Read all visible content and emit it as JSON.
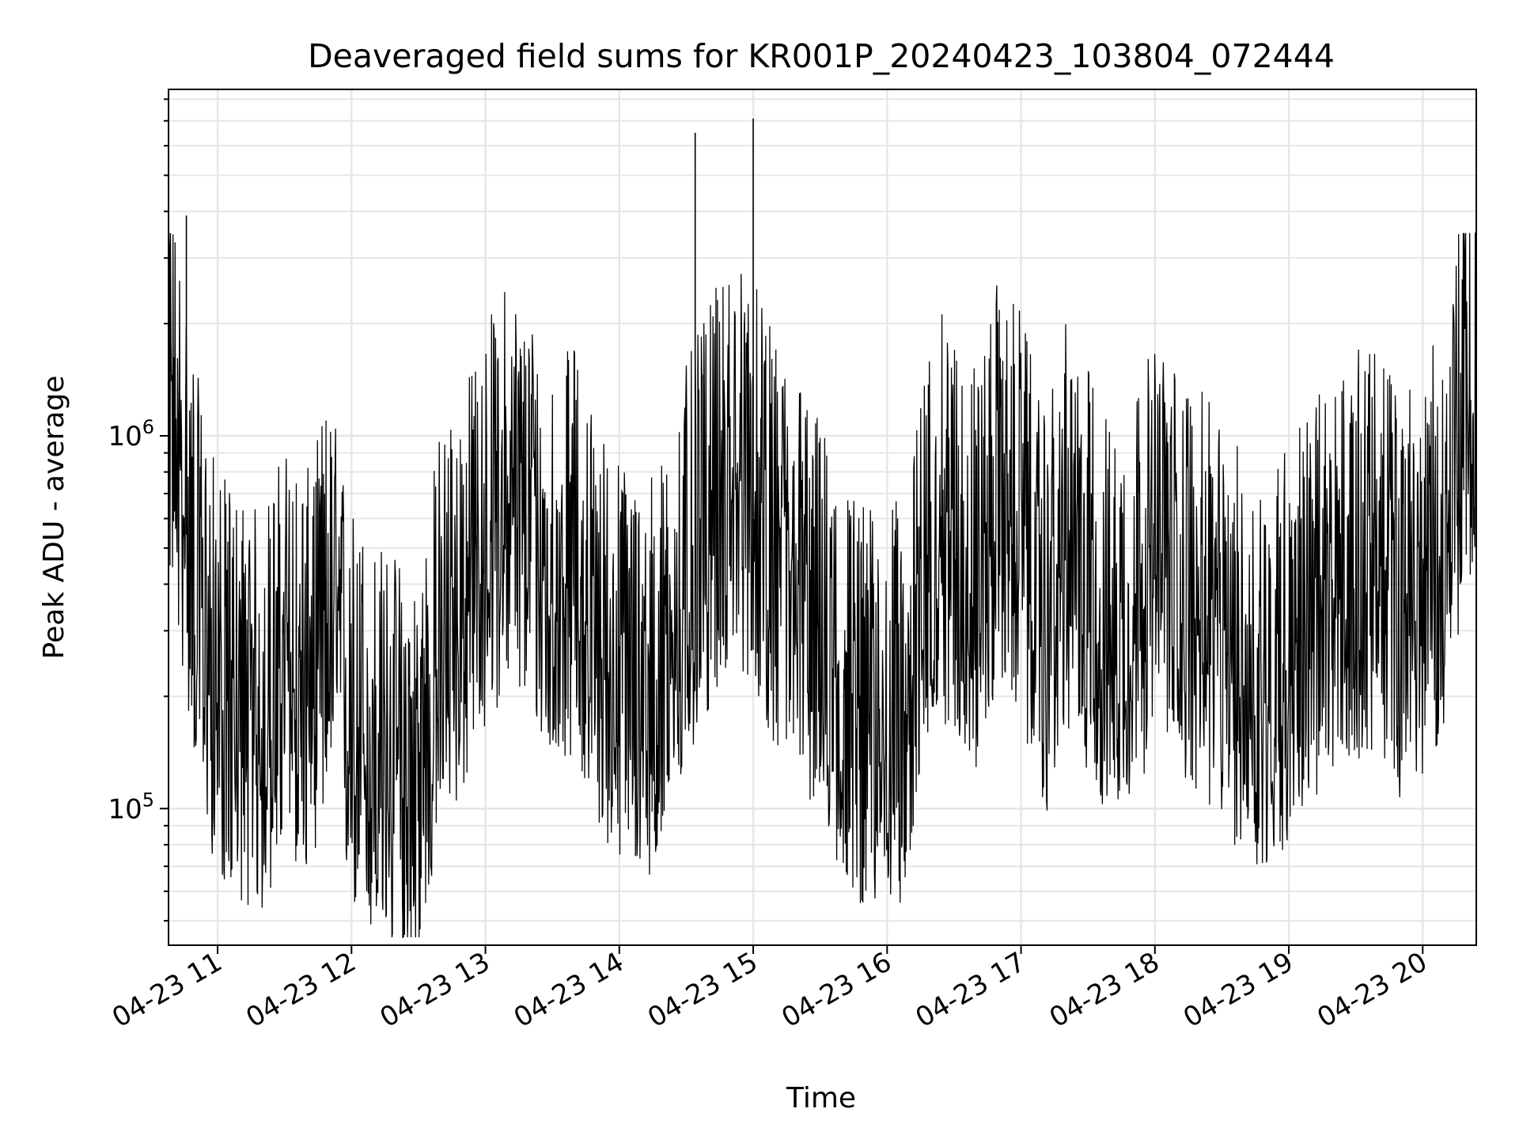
{
  "chart_data": {
    "type": "line",
    "title": "Deaveraged field sums for KR001P_20240423_103804_072444",
    "xlabel": "Time",
    "ylabel": "Peak ADU - average",
    "yscale": "log",
    "ylim": [
      43000,
      8500000
    ],
    "xlim": [
      "2024-04-23 10:38",
      "2024-04-23 20:24"
    ],
    "x_ticks": [
      "04-23 11",
      "04-23 12",
      "04-23 13",
      "04-23 14",
      "04-23 15",
      "04-23 16",
      "04-23 17",
      "04-23 18",
      "04-23 19",
      "04-23 20"
    ],
    "y_ticks": [
      {
        "base": "10",
        "exp": "5",
        "value": 100000
      },
      {
        "base": "10",
        "exp": "6",
        "value": 1000000
      }
    ],
    "grid": true,
    "series_color": "#000000",
    "series": [
      {
        "x": [
          "2024-04-23 10:38",
          "2024-04-23 10:45",
          "2024-04-23 10:52",
          "2024-04-23 11:00",
          "2024-04-23 11:10",
          "2024-04-23 11:20",
          "2024-04-23 11:30",
          "2024-04-23 11:40",
          "2024-04-23 11:50",
          "2024-04-23 12:00",
          "2024-04-23 12:10",
          "2024-04-23 12:20",
          "2024-04-23 12:30",
          "2024-04-23 12:40",
          "2024-04-23 12:50",
          "2024-04-23 13:00",
          "2024-04-23 13:10",
          "2024-04-23 13:20",
          "2024-04-23 13:30",
          "2024-04-23 13:40",
          "2024-04-23 13:50",
          "2024-04-23 14:00",
          "2024-04-23 14:10",
          "2024-04-23 14:20",
          "2024-04-23 14:30",
          "2024-04-23 14:40",
          "2024-04-23 14:50",
          "2024-04-23 15:00",
          "2024-04-23 15:10",
          "2024-04-23 15:20",
          "2024-04-23 15:30",
          "2024-04-23 15:40",
          "2024-04-23 15:50",
          "2024-04-23 16:00",
          "2024-04-23 16:10",
          "2024-04-23 16:20",
          "2024-04-23 16:30",
          "2024-04-23 16:40",
          "2024-04-23 16:50",
          "2024-04-23 17:00",
          "2024-04-23 17:10",
          "2024-04-23 17:20",
          "2024-04-23 17:30",
          "2024-04-23 17:40",
          "2024-04-23 17:50",
          "2024-04-23 18:00",
          "2024-04-23 18:10",
          "2024-04-23 18:20",
          "2024-04-23 18:30",
          "2024-04-23 18:40",
          "2024-04-23 18:50",
          "2024-04-23 19:00",
          "2024-04-23 19:10",
          "2024-04-23 19:20",
          "2024-04-23 19:30",
          "2024-04-23 19:40",
          "2024-04-23 19:50",
          "2024-04-23 20:00",
          "2024-04-23 20:10",
          "2024-04-23 20:20",
          "2024-04-23 20:24"
        ],
        "y": [
          1200000,
          600000,
          300000,
          180000,
          160000,
          140000,
          220000,
          180000,
          300000,
          150000,
          120000,
          110000,
          100000,
          250000,
          300000,
          450000,
          600000,
          500000,
          350000,
          400000,
          250000,
          200000,
          180000,
          200000,
          350000,
          500000,
          700000,
          600000,
          400000,
          350000,
          250000,
          180000,
          150000,
          140000,
          170000,
          500000,
          450000,
          350000,
          600000,
          500000,
          250000,
          450000,
          350000,
          250000,
          300000,
          400000,
          350000,
          300000,
          250000,
          200000,
          180000,
          230000,
          280000,
          320000,
          380000,
          400000,
          300000,
          350000,
          450000,
          1200000,
          1000000
        ]
      }
    ],
    "spikes": [
      {
        "x": "2024-04-23 14:34",
        "y": 6500000
      },
      {
        "x": "2024-04-23 15:00",
        "y": 7100000
      },
      {
        "x": "2024-04-23 10:46",
        "y": 3900000
      },
      {
        "x": "2024-04-23 12:23",
        "y": 45000
      }
    ]
  }
}
